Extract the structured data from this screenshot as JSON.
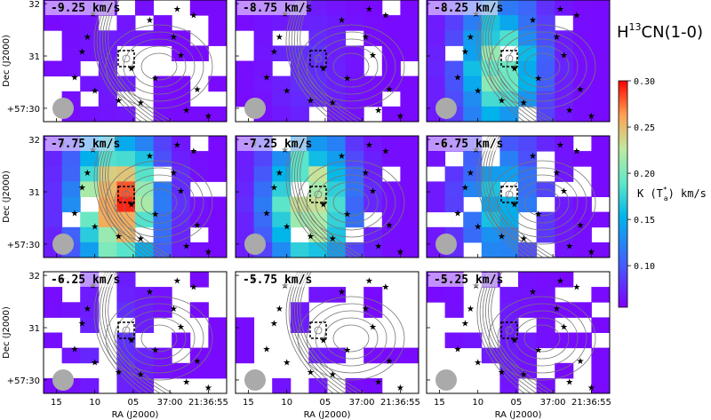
{
  "chart_data": {
    "type": "heatmap",
    "title": "H13CN(1-0)",
    "title_parts": {
      "base": "H",
      "sup": "13",
      "rest": "CN(1-0)"
    },
    "xlabel": "RA (J2000)",
    "ylabel": "Dec (J2000)",
    "x_ticks": [
      "15",
      "10",
      "05",
      "37:00",
      "21:36:55"
    ],
    "y_ticks": [
      "32",
      "31",
      "+57:30"
    ],
    "colorbar": {
      "label": "K (T*a) km/s",
      "label_parts": {
        "pre": "K (T",
        "sup": "*",
        "sub": "a",
        "post": ") km/s"
      },
      "ticks": [
        0.1,
        0.15,
        0.2,
        0.25,
        0.3
      ],
      "tick_labels": [
        "0.10",
        "0.15",
        "0.20",
        "0.25",
        "0.30"
      ],
      "range": [
        0.055,
        0.3
      ],
      "colormap": "rainbow"
    },
    "panels": [
      {
        "label": "-9.25 km/s",
        "peak": 0.07,
        "coverage": 0.55
      },
      {
        "label": "-8.75 km/s",
        "peak": 0.08,
        "coverage": 0.8
      },
      {
        "label": "-8.25 km/s",
        "peak": 0.21,
        "coverage": 0.95
      },
      {
        "label": "-7.75 km/s",
        "peak": 0.29,
        "coverage": 0.9
      },
      {
        "label": "-7.25 km/s",
        "peak": 0.25,
        "coverage": 0.88
      },
      {
        "label": "-6.75 km/s",
        "peak": 0.16,
        "coverage": 0.8
      },
      {
        "label": "-6.25 km/s",
        "peak": 0.08,
        "coverage": 0.55
      },
      {
        "label": "-5.75 km/s",
        "peak": 0.07,
        "coverage": 0.2
      },
      {
        "label": "-5.25 km/s",
        "peak": 0.07,
        "coverage": 0.38
      }
    ]
  }
}
